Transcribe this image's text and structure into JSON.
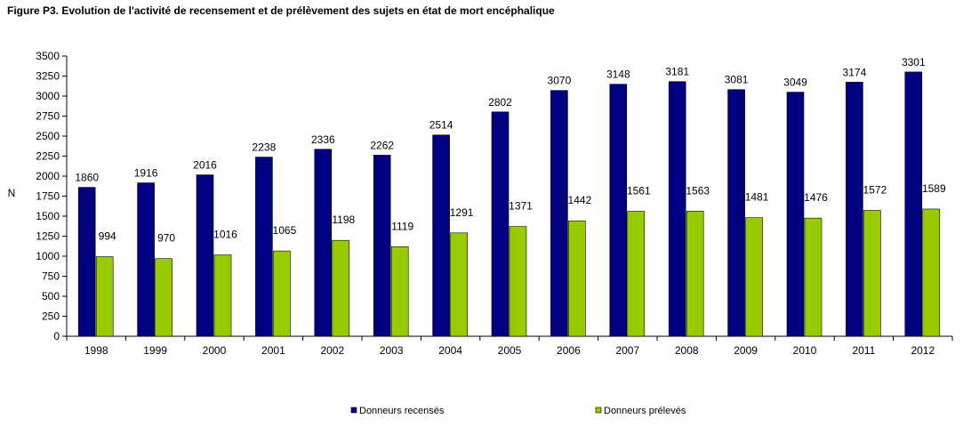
{
  "figure": {
    "title": "Figure P3. Evolution de l'activité de recensement et de prélèvement des sujets en état de mort encéphalique"
  },
  "colors": {
    "recenses": "#000080",
    "preleves": "#99CC00",
    "axis": "#000000"
  },
  "chart_data": {
    "type": "bar",
    "title": "Figure P3. Evolution de l'activité de recensement et de prélèvement des sujets en état de mort encéphalique",
    "xlabel": "",
    "ylabel": "N",
    "ylim": [
      0,
      3500
    ],
    "yticks": [
      "0",
      "250",
      "500",
      "750",
      "1000",
      "1250",
      "1500",
      "1750",
      "2000",
      "2250",
      "2500",
      "2750",
      "3000",
      "3250",
      "3500"
    ],
    "grid": false,
    "legend_position": "bottom",
    "categories": [
      "1998",
      "1999",
      "2000",
      "2001",
      "2002",
      "2003",
      "2004",
      "2005",
      "2006",
      "2007",
      "2008",
      "2009",
      "2010",
      "2011",
      "2012"
    ],
    "series": [
      {
        "name": "Donneurs recensés",
        "values": [
          1860,
          1916,
          2016,
          2238,
          2336,
          2262,
          2514,
          2802,
          3070,
          3148,
          3181,
          3081,
          3049,
          3174,
          3301
        ]
      },
      {
        "name": "Donneurs prélevés",
        "values": [
          994,
          970,
          1016,
          1065,
          1198,
          1119,
          1291,
          1371,
          1442,
          1561,
          1563,
          1481,
          1476,
          1572,
          1589
        ]
      }
    ]
  }
}
